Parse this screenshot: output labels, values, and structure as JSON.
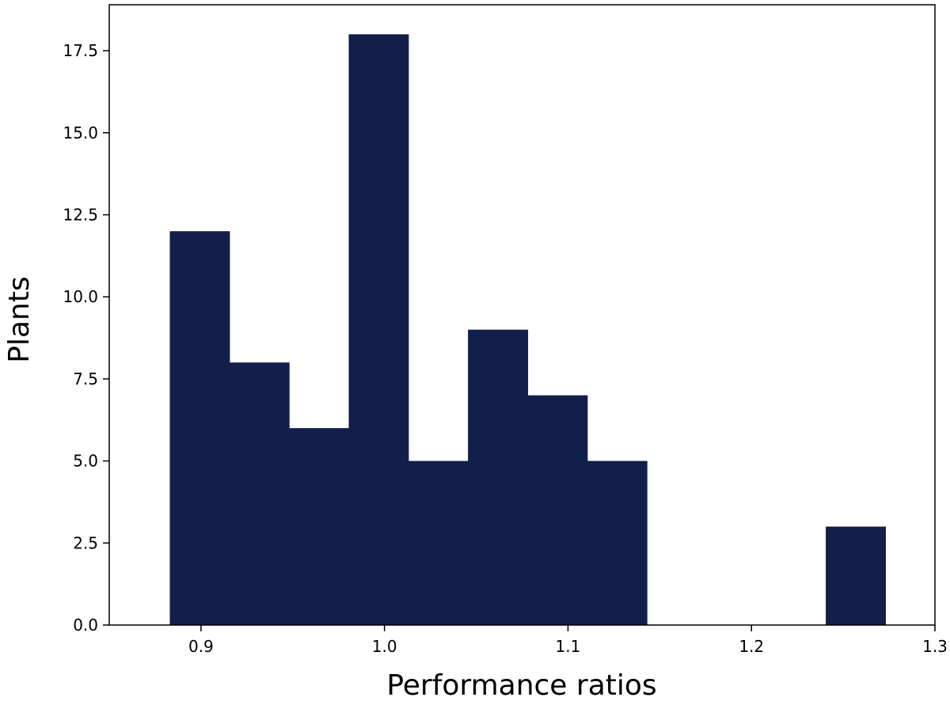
{
  "chart_data": {
    "type": "bar",
    "subtype": "histogram",
    "title": "",
    "xlabel": "Performance ratios",
    "ylabel": "Plants",
    "xlim": [
      0.85,
      1.3
    ],
    "ylim": [
      0,
      18.9
    ],
    "x_ticks": [
      "0.9",
      "1.0",
      "1.1",
      "1.2",
      "1.3"
    ],
    "y_ticks": [
      "0.0",
      "2.5",
      "5.0",
      "7.5",
      "10.0",
      "12.5",
      "15.0",
      "17.5"
    ],
    "bins": [
      {
        "start": 0.883,
        "end": 0.9155,
        "count": 12
      },
      {
        "start": 0.9155,
        "end": 0.948,
        "count": 8
      },
      {
        "start": 0.948,
        "end": 0.9805,
        "count": 6
      },
      {
        "start": 0.9805,
        "end": 1.013,
        "count": 18
      },
      {
        "start": 1.013,
        "end": 1.0455,
        "count": 5
      },
      {
        "start": 1.0455,
        "end": 1.078,
        "count": 9
      },
      {
        "start": 1.078,
        "end": 1.1105,
        "count": 7
      },
      {
        "start": 1.1105,
        "end": 1.143,
        "count": 5
      },
      {
        "start": 1.143,
        "end": 1.1755,
        "count": 0
      },
      {
        "start": 1.1755,
        "end": 1.208,
        "count": 0
      },
      {
        "start": 1.208,
        "end": 1.2405,
        "count": 0
      },
      {
        "start": 1.2405,
        "end": 1.273,
        "count": 3
      }
    ],
    "bar_color": "#121f4a",
    "grid": false,
    "legend": "none"
  }
}
